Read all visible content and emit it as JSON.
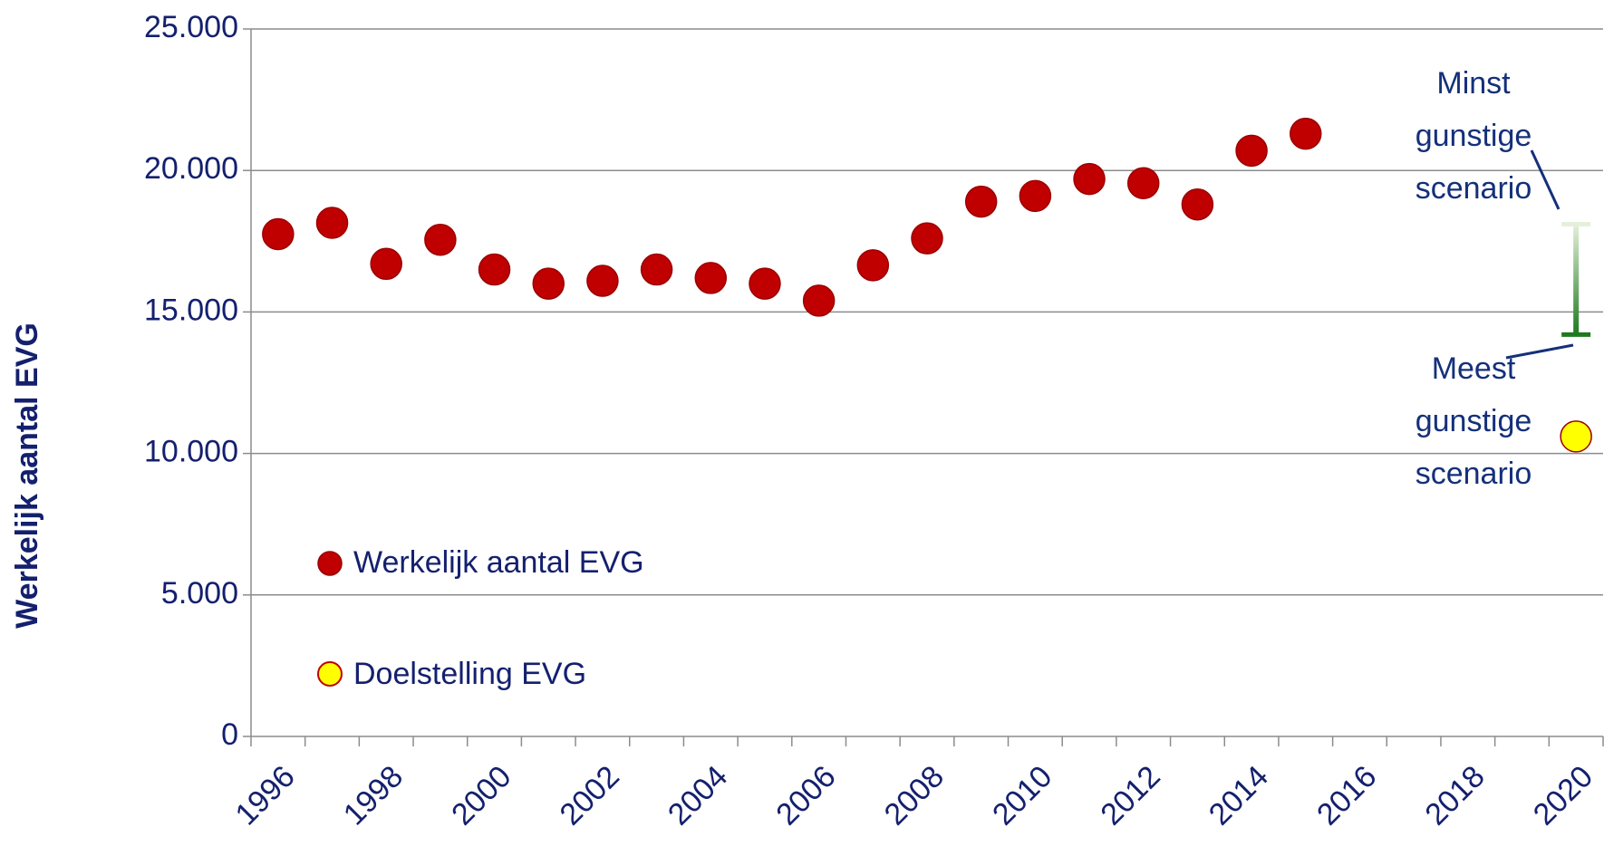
{
  "chart_data": {
    "type": "scatter",
    "y_axis_label": "Werkelijk aantal EVG",
    "categories": [
      "1996",
      null,
      "1998",
      null,
      "2000",
      null,
      "2002",
      null,
      "2004",
      null,
      "2006",
      null,
      "2008",
      null,
      "2010",
      null,
      "2012",
      null,
      "2014",
      null,
      "2016",
      null,
      "2018",
      null,
      "2020"
    ],
    "series": [
      {
        "name": "Werkelijk aantal EVG",
        "color": "#c00000",
        "values": [
          17750,
          18150,
          16700,
          17550,
          16500,
          16000,
          16100,
          16500,
          16200,
          16000,
          15400,
          16650,
          17600,
          18900,
          19100,
          19700,
          19550,
          18800,
          20700,
          21300,
          null,
          null,
          null,
          null,
          null
        ]
      },
      {
        "name": "Doelstelling EVG",
        "color": "#ffff00",
        "values": [
          null,
          null,
          null,
          null,
          null,
          null,
          null,
          null,
          null,
          null,
          null,
          null,
          null,
          null,
          null,
          null,
          null,
          null,
          null,
          null,
          null,
          null,
          null,
          null,
          10600
        ]
      }
    ],
    "scenario_range": {
      "low": 14200,
      "high": 18100,
      "color": "#1e7a1e"
    },
    "annotations": [
      {
        "text": "Minst gunstige scenario"
      },
      {
        "text": "Meest gunstige scenario"
      }
    ],
    "ylim": [
      0,
      25000
    ],
    "yticks": [
      0,
      {
        "value": 5000,
        "label": "5.000"
      },
      {
        "value": 10000,
        "label": "10.000"
      },
      {
        "value": 15000,
        "label": "15.000"
      },
      {
        "value": 20000,
        "label": "20.000"
      },
      {
        "value": 25000,
        "label": "25.000"
      }
    ],
    "grid": true
  }
}
